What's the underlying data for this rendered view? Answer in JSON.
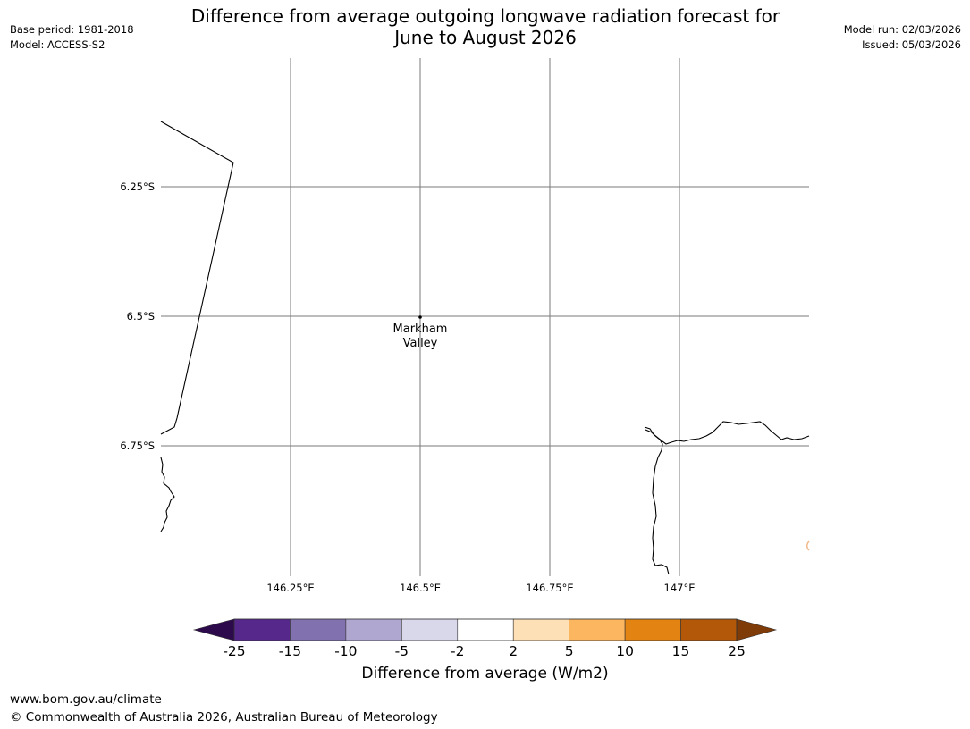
{
  "header": {
    "title_line1": "Difference from average outgoing longwave radiation forecast for",
    "title_line2": "June to August 2026",
    "base_period": "Base period: 1981-2018",
    "model": "Model: ACCESS-S2",
    "model_run": "Model run: 02/03/2026",
    "issued": "Issued: 05/03/2026"
  },
  "map": {
    "lat_labels": [
      "6.25°S",
      "6.5°S",
      "6.75°S"
    ],
    "lon_labels": [
      "146.25°E",
      "146.5°E",
      "146.75°E",
      "147°E"
    ],
    "place": {
      "name_line1": "Markham",
      "name_line2": "Valley",
      "lon": 146.5,
      "lat": -6.5
    },
    "coastline_color": "#000000",
    "gridline_color": "#7a7a7a"
  },
  "colorbar": {
    "label": "Difference from average (W/m2)",
    "ticks": [
      "-25",
      "-15",
      "-10",
      "-5",
      "-2",
      "2",
      "5",
      "10",
      "15",
      "25"
    ],
    "colors": [
      "#56288c",
      "#8171ae",
      "#b0a7d1",
      "#d9d8ea",
      "#ffffff",
      "#fde0b5",
      "#fbb65f",
      "#e28312",
      "#b35808"
    ],
    "extend_low_color": "#2d0a4b",
    "extend_high_color": "#7f3b08"
  },
  "footer": {
    "url": "www.bom.gov.au/climate",
    "copyright": "© Commonwealth of Australia 2026, Australian Bureau of Meteorology"
  }
}
